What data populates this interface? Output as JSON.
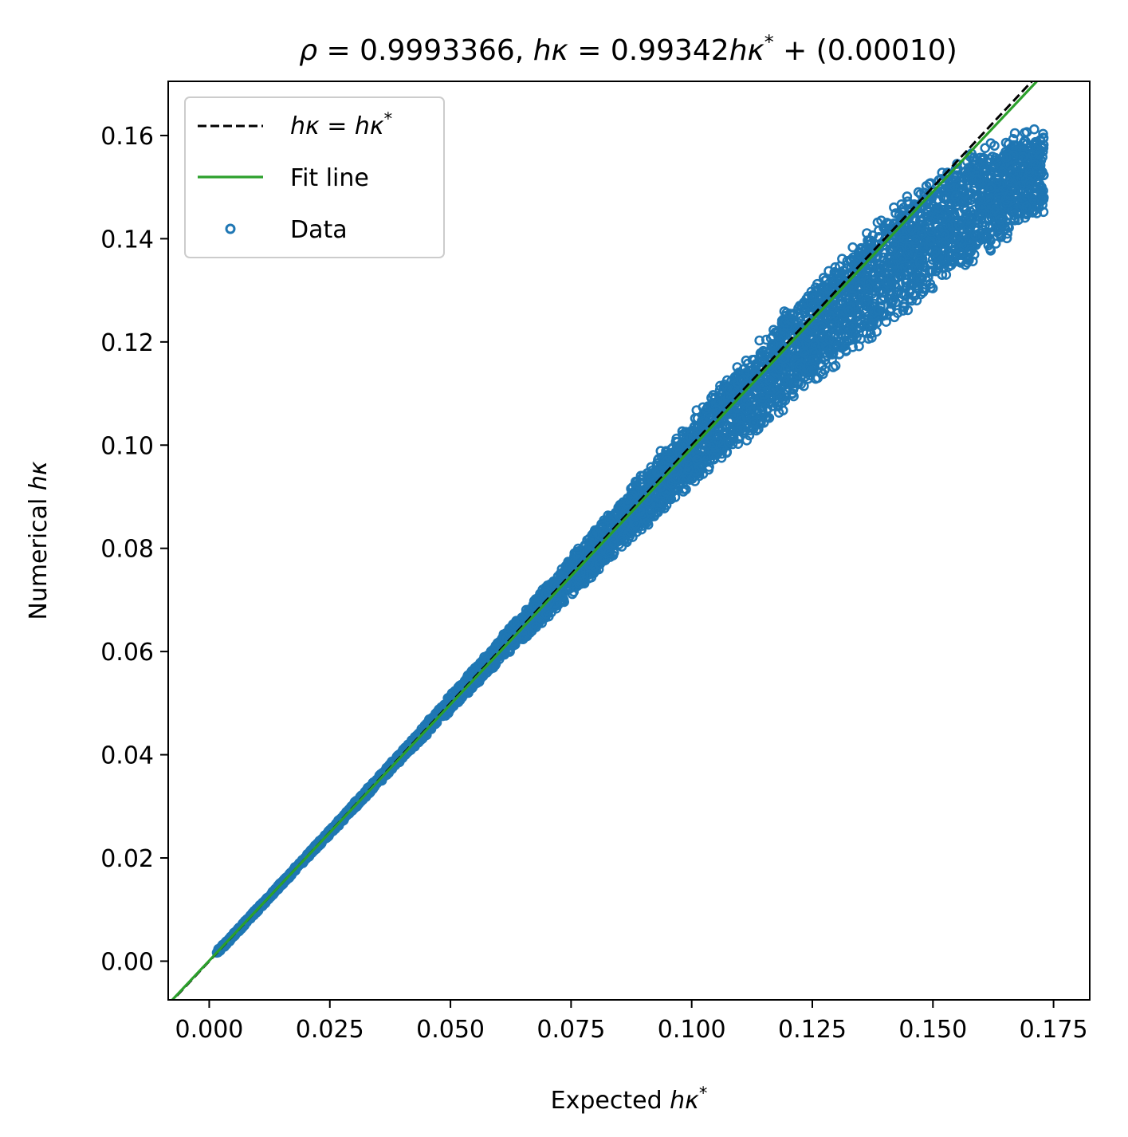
{
  "chart_data": {
    "type": "scatter",
    "title": "ρ = 0.9993366,   hκ = 0.99342hκ* + (0.00010)",
    "title_parts": {
      "rho_symbol": "ρ",
      "rho_value": " = 0.9993366,   ",
      "h1": "hκ",
      "eq_mid": " = 0.99342",
      "h2": "hκ",
      "star": "*",
      "tail": " + (0.00010)"
    },
    "xlabel": "Expected hκ*",
    "xlabel_parts": {
      "prefix": "Expected ",
      "sym": "hκ",
      "sup": "*"
    },
    "ylabel": "Numerical hκ",
    "ylabel_parts": {
      "prefix": "Numerical ",
      "sym": "hκ"
    },
    "xlim": [
      -0.0085,
      0.1825
    ],
    "ylim": [
      -0.0075,
      0.1705
    ],
    "xticks": [
      0.0,
      0.025,
      0.05,
      0.075,
      0.1,
      0.125,
      0.15,
      0.175
    ],
    "xtick_labels": [
      "0.000",
      "0.025",
      "0.050",
      "0.075",
      "0.100",
      "0.125",
      "0.150",
      "0.175"
    ],
    "yticks": [
      0.0,
      0.02,
      0.04,
      0.06,
      0.08,
      0.1,
      0.12,
      0.14,
      0.16
    ],
    "ytick_labels": [
      "0.00",
      "0.02",
      "0.04",
      "0.06",
      "0.08",
      "0.10",
      "0.12",
      "0.14",
      "0.16"
    ],
    "grid": false,
    "legend_position": "top-left",
    "legend": {
      "identity_label": "hκ = hκ*",
      "identity_parts": {
        "a": "hκ",
        "eq": " = ",
        "b": "hκ",
        "sup": "*"
      },
      "fit_label": "Fit line",
      "data_label": "Data"
    },
    "series": [
      {
        "kind": "line",
        "style": "dashed",
        "color": "#000000",
        "slope": 1.0,
        "intercept": 0.0
      },
      {
        "kind": "line",
        "style": "solid",
        "color": "#2ca02c",
        "slope": 0.99342,
        "intercept": 0.0001
      },
      {
        "name": "Data",
        "kind": "scatter",
        "marker": "open-circle",
        "color": "#1f77b4",
        "x_range": [
          0.0015,
          0.173
        ],
        "upper_envelope": [
          [
            0.002,
            0.0025
          ],
          [
            0.02,
            0.0205
          ],
          [
            0.04,
            0.041
          ],
          [
            0.06,
            0.0625
          ],
          [
            0.08,
            0.0845
          ],
          [
            0.1,
            0.1065
          ],
          [
            0.12,
            0.1275
          ],
          [
            0.14,
            0.1465
          ],
          [
            0.155,
            0.1565
          ],
          [
            0.165,
            0.161
          ],
          [
            0.173,
            0.1615
          ]
        ],
        "lower_envelope": [
          [
            0.002,
            0.0015
          ],
          [
            0.02,
            0.0195
          ],
          [
            0.04,
            0.039
          ],
          [
            0.06,
            0.0575
          ],
          [
            0.08,
            0.0745
          ],
          [
            0.1,
            0.0915
          ],
          [
            0.12,
            0.107
          ],
          [
            0.14,
            0.1215
          ],
          [
            0.155,
            0.1325
          ],
          [
            0.165,
            0.1385
          ],
          [
            0.173,
            0.144
          ]
        ],
        "notable_points": [
          [
            0.155,
            0.1545
          ],
          [
            0.162,
            0.1585
          ],
          [
            0.147,
            0.149
          ],
          [
            0.158,
            0.1565
          ],
          [
            0.171,
            0.1612
          ],
          [
            0.169,
            0.1605
          ],
          [
            0.159,
            0.1515
          ]
        ]
      }
    ]
  }
}
